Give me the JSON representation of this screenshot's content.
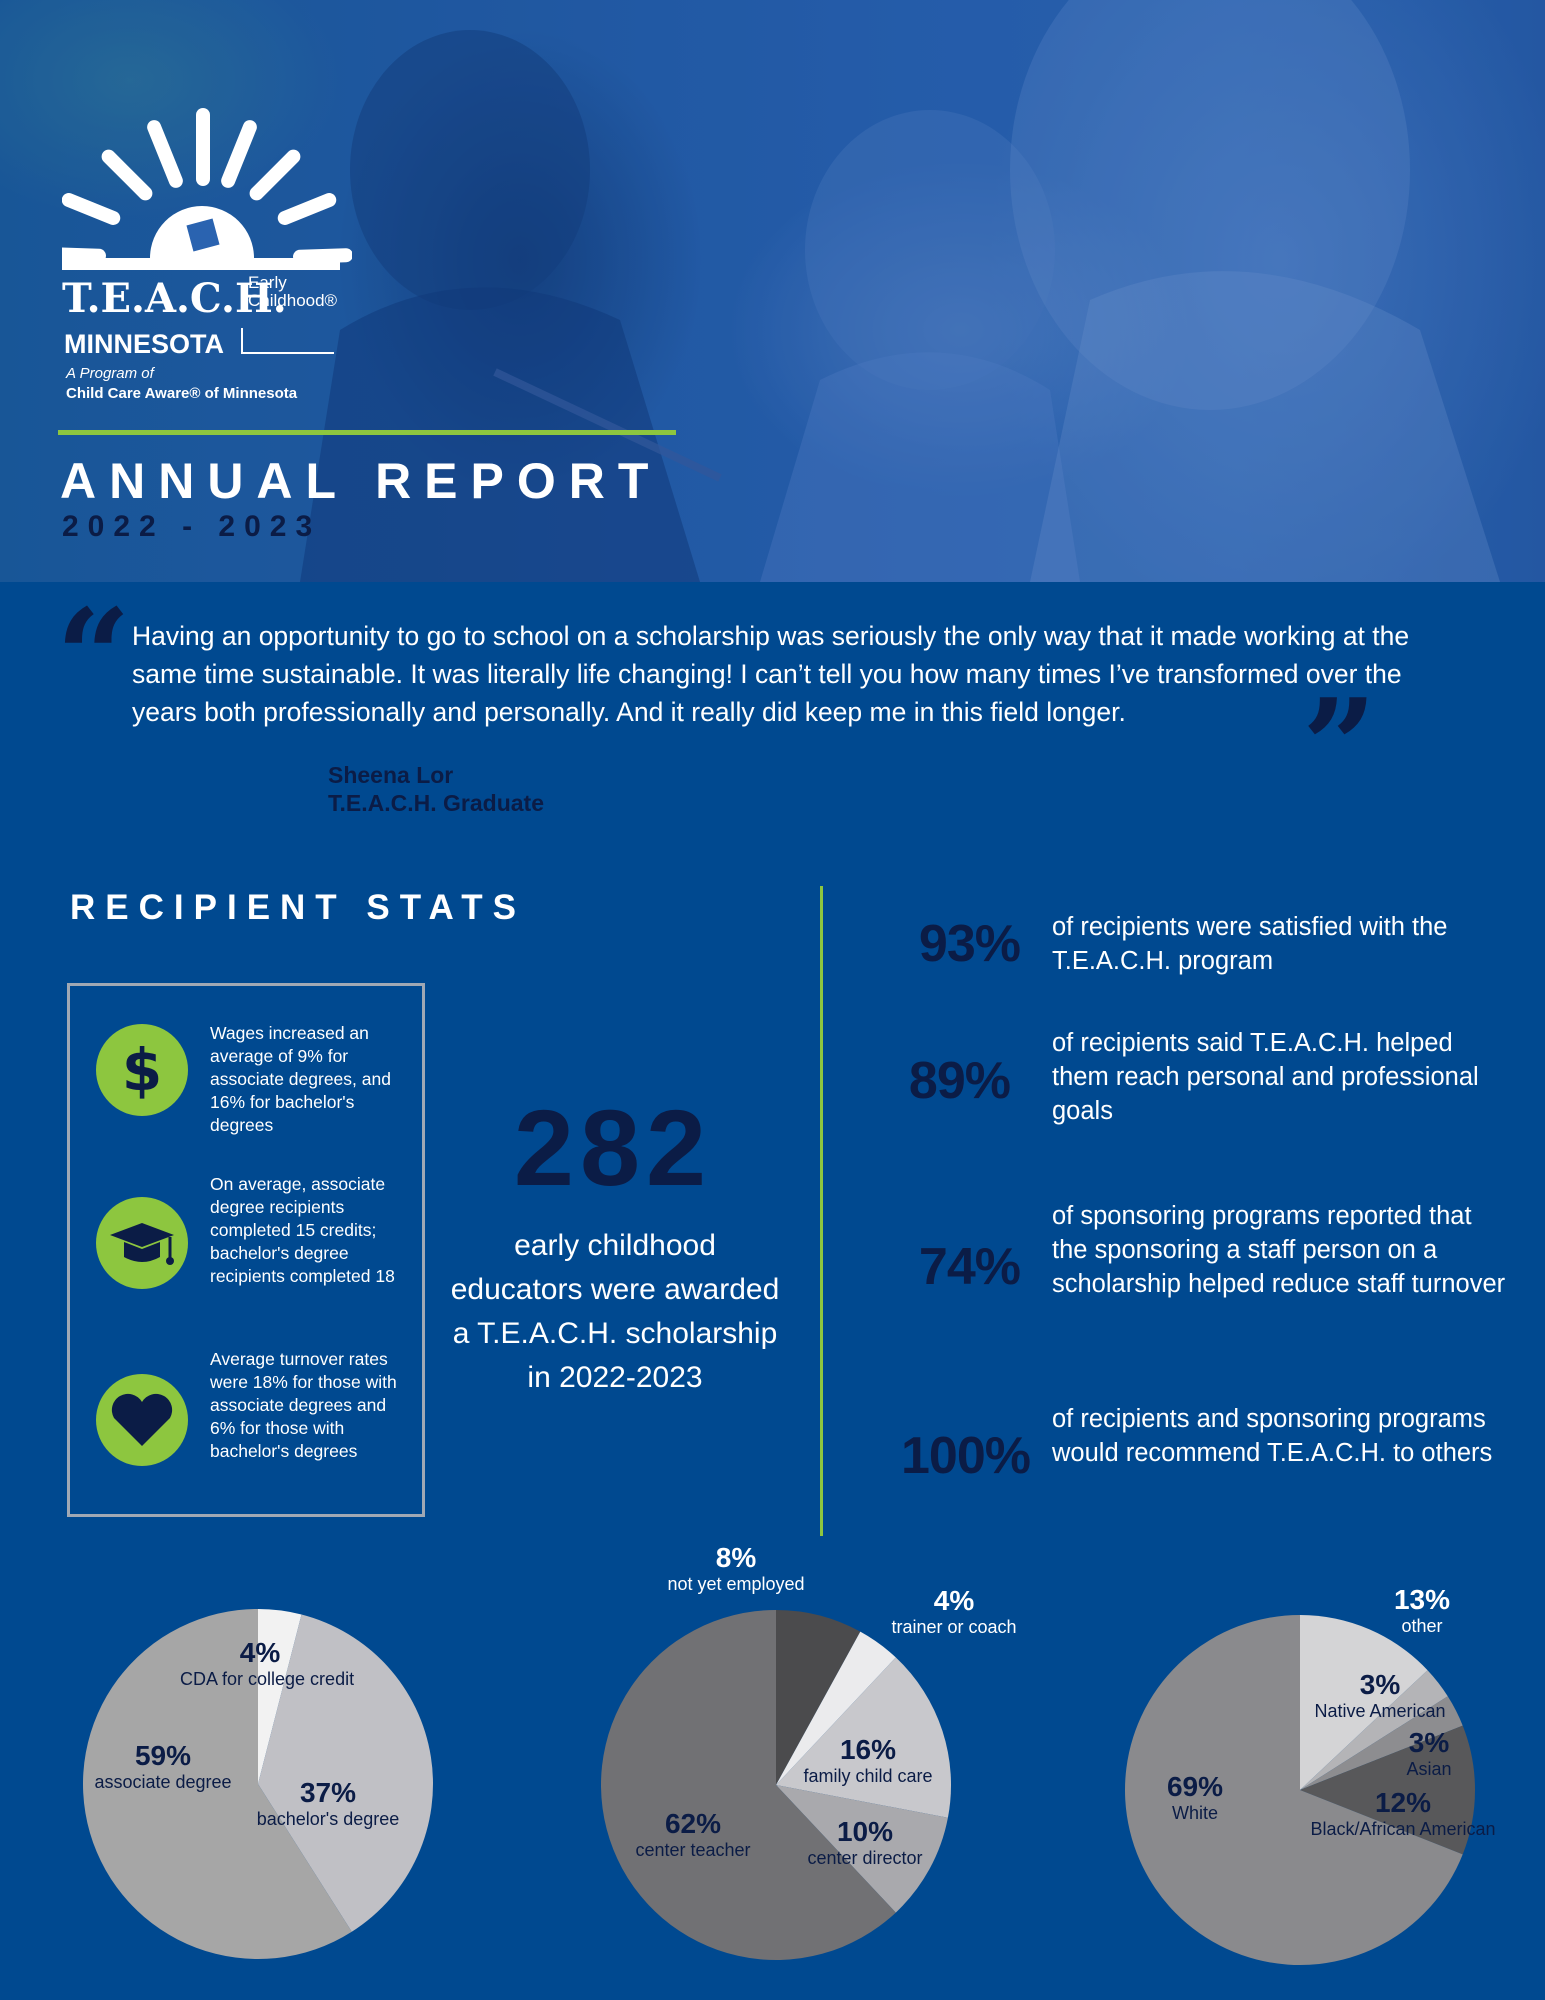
{
  "header": {
    "logo": {
      "wordmark": "T.E.A.C.H.",
      "subbrand": "Early Childhood®",
      "state": "MINNESOTA",
      "program_line1": "A Program of",
      "program_line2": "Child Care Aware® of Minnesota"
    },
    "title": "ANNUAL REPORT",
    "years": "2022 - 2023"
  },
  "quote": {
    "text": "Having an opportunity to go to school on a scholarship was seriously the only way that it made working at the same time sustainable. It was literally life changing! I can’t tell you how many times I’ve transformed over the years both professionally and personally. And it really did keep me in this field longer.",
    "author_name": "Sheena Lor",
    "author_title": "T.E.A.C.H. Graduate"
  },
  "stats": {
    "heading": "RECIPIENT STATS",
    "items": [
      {
        "icon": "dollar-icon",
        "text": "Wages increased an average of 9% for associate degrees, and 16% for bachelor's degrees"
      },
      {
        "icon": "graduation-cap-icon",
        "text": "On average, associate degree recipients completed 15 credits; bachelor's degree recipients completed 18"
      },
      {
        "icon": "heart-icon",
        "text": "Average turnover rates were 18% for those with associate degrees and 6% for those with bachelor's degrees"
      }
    ],
    "big_number": "282",
    "big_caption": "early childhood educators were awarded a T.E.A.C.H. scholarship in 2022-2023",
    "percentages": [
      {
        "value": "93%",
        "text": "of recipients were satisfied with the T.E.A.C.H. program"
      },
      {
        "value": "89%",
        "text": "of recipients said T.E.A.C.H. helped them reach personal and professional goals"
      },
      {
        "value": "74%",
        "text": "of sponsoring programs reported that the sponsoring a staff person on a scholarship helped reduce staff turnover"
      },
      {
        "value": "100%",
        "text": "of recipients and sponsoring programs would recommend T.E.A.C.H. to others"
      }
    ]
  },
  "colors": {
    "background": "#004990",
    "accent_green": "#8dc63f",
    "navy_text": "#0b1c46"
  },
  "chart_data": [
    {
      "type": "pie",
      "slices": [
        {
          "label": "CDA for college credit",
          "value": 4,
          "display": "4%",
          "color": "#f2f2f2"
        },
        {
          "label": "bachelor's degree",
          "value": 37,
          "display": "37%",
          "color": "#c0c0c5"
        },
        {
          "label": "associate degree",
          "value": 59,
          "display": "59%",
          "color": "#a6a6a6"
        }
      ]
    },
    {
      "type": "pie",
      "slices": [
        {
          "label": "not yet employed",
          "value": 8,
          "display": "8%",
          "color": "#4b4b4d"
        },
        {
          "label": "trainer or coach",
          "value": 4,
          "display": "4%",
          "color": "#ebebed"
        },
        {
          "label": "family child care",
          "value": 16,
          "display": "16%",
          "color": "#c8c8cc"
        },
        {
          "label": "center director",
          "value": 10,
          "display": "10%",
          "color": "#a9a9ad"
        },
        {
          "label": "center teacher",
          "value": 62,
          "display": "62%",
          "color": "#717174"
        }
      ]
    },
    {
      "type": "pie",
      "slices": [
        {
          "label": "other",
          "value": 13,
          "display": "13%",
          "color": "#d4d4d6"
        },
        {
          "label": "Native American",
          "value": 3,
          "display": "3%",
          "color": "#b4b4b7"
        },
        {
          "label": "Asian",
          "value": 3,
          "display": "3%",
          "color": "#8d8d90"
        },
        {
          "label": "Black/African American",
          "value": 12,
          "display": "12%",
          "color": "#58585a"
        },
        {
          "label": "White",
          "value": 69,
          "display": "69%",
          "color": "#8a8a8d"
        }
      ]
    }
  ]
}
